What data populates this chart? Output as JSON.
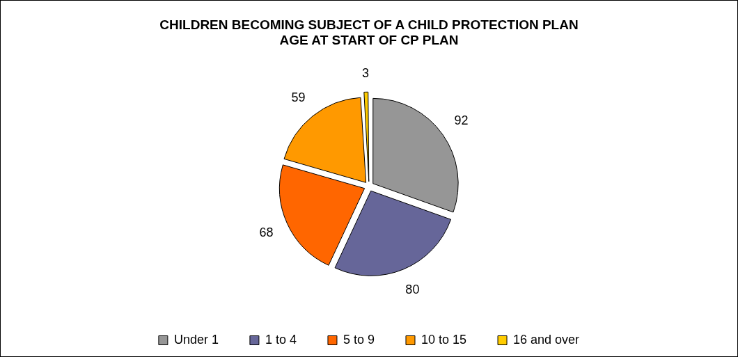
{
  "chart_data": {
    "type": "pie",
    "title": [
      "CHILDREN BECOMING SUBJECT OF A CHILD PROTECTION PLAN",
      "AGE AT START OF CP PLAN"
    ],
    "categories": [
      "Under 1",
      "1 to 4",
      "5 to 9",
      "10 to 15",
      "16 and over"
    ],
    "values": [
      92,
      80,
      68,
      59,
      3
    ],
    "colors": [
      "#969696",
      "#666699",
      "#ff6600",
      "#ff9900",
      "#ffcc00"
    ],
    "data_labels": true,
    "legend": "bottom"
  }
}
